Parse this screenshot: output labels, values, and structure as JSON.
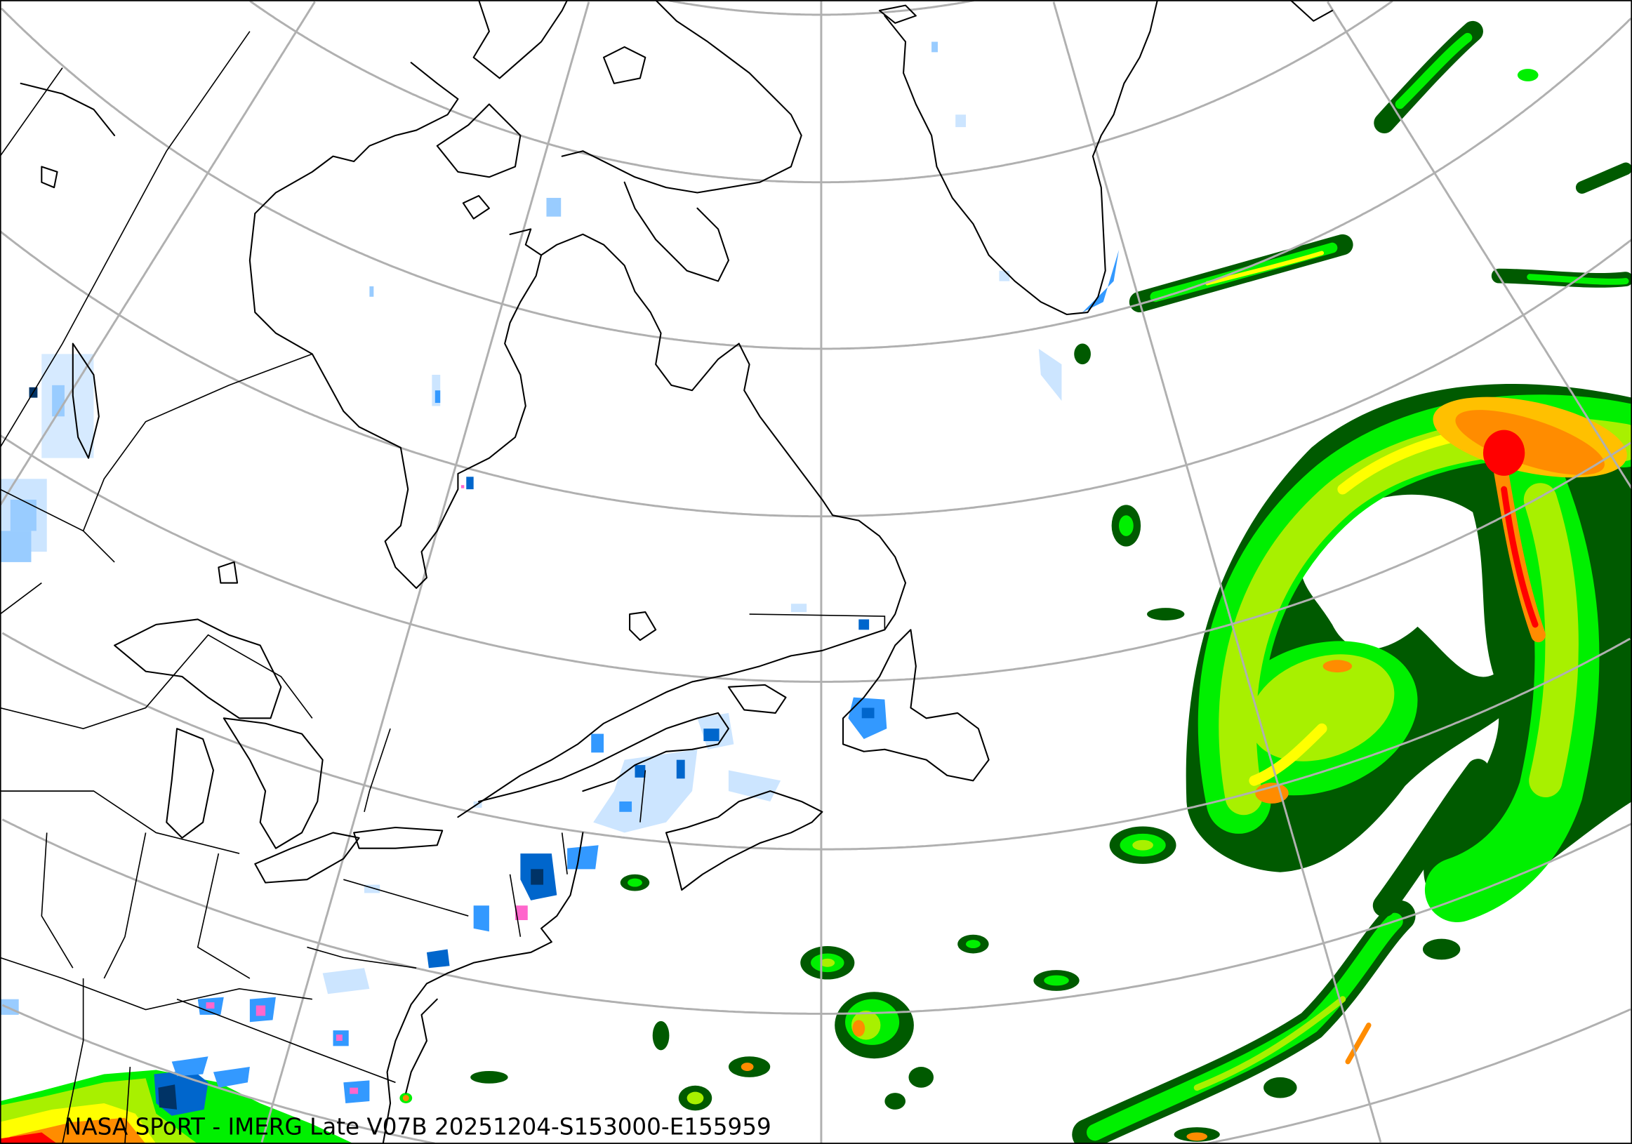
{
  "caption": "NASA SPoRT - IMERG Late V07B 20251204-S153000-E155959",
  "colors": {
    "coastline": "#000000",
    "graticule": "#b0b0b0",
    "rain_dark_green": "#005a00",
    "rain_green": "#00b400",
    "rain_bright_green": "#00f000",
    "rain_yellow_green": "#a8f000",
    "rain_yellow": "#ffff00",
    "rain_light_orange": "#ffc000",
    "rain_orange": "#ff8c00",
    "rain_red": "#ff0000",
    "snow_very_light": "#cce5ff",
    "snow_light": "#99ccff",
    "snow_medium": "#3399ff",
    "snow_heavy": "#0066cc",
    "snow_very_heavy": "#003366",
    "mixed_pink": "#ff66cc"
  }
}
